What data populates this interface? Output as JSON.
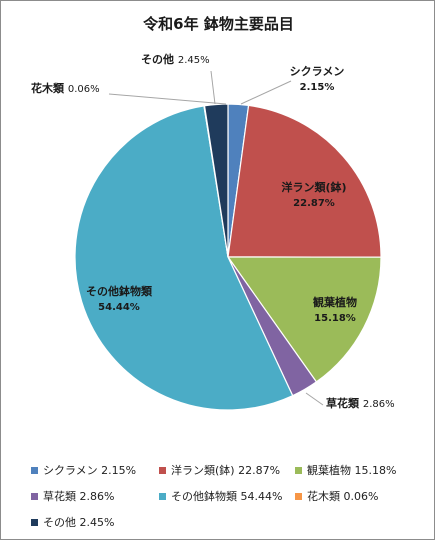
{
  "chart_data": {
    "type": "pie",
    "title": "令和6年  鉢物主要品目",
    "slices": [
      {
        "label": "シクラメン",
        "value": 2.15,
        "display": "2.15%",
        "legend": "シクラメン 2.15%",
        "color": "#4f81bd"
      },
      {
        "label": "洋ラン類(鉢)",
        "value": 22.87,
        "display": "22.87%",
        "legend": "洋ラン類(鉢) 22.87%",
        "color": "#c0504d"
      },
      {
        "label": "観葉植物",
        "value": 15.18,
        "display": "15.18%",
        "legend": "観葉植物 15.18%",
        "color": "#9bbb59"
      },
      {
        "label": "草花類",
        "value": 2.86,
        "display": "2.86%",
        "legend": "草花類 2.86%",
        "color": "#8064a2"
      },
      {
        "label": "その他鉢物類",
        "value": 54.44,
        "display": "54.44%",
        "legend": "その他鉢物類 54.44%",
        "color": "#4bacc6"
      },
      {
        "label": "花木類",
        "value": 0.06,
        "display": "0.06%",
        "legend": "花木類 0.06%",
        "color": "#f79646"
      },
      {
        "label": "その他",
        "value": 2.45,
        "display": "2.45%",
        "legend": "その他 2.45%",
        "color": "#1f3b5c"
      }
    ],
    "legend_position": "bottom"
  }
}
